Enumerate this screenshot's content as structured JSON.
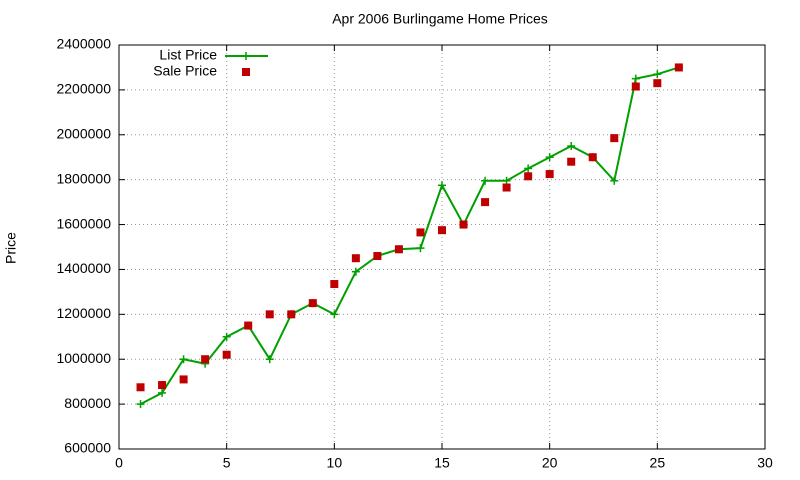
{
  "chart_data": {
    "type": "line",
    "title": "Apr 2006 Burlingame Home Prices",
    "y_label": "Price",
    "x": [
      1,
      2,
      3,
      4,
      5,
      6,
      7,
      8,
      9,
      10,
      11,
      12,
      13,
      14,
      15,
      16,
      17,
      18,
      19,
      20,
      21,
      22,
      23,
      24,
      25,
      26
    ],
    "series": [
      {
        "name": "List Price",
        "color": "#00a000",
        "style": "linespoints",
        "values": [
          800000,
          850000,
          1000000,
          980000,
          1100000,
          1150000,
          1000000,
          1200000,
          1250000,
          1200000,
          1390000,
          1460000,
          1490000,
          1495000,
          1775000,
          1600000,
          1795000,
          1795000,
          1850000,
          1900000,
          1950000,
          1900000,
          1795000,
          2250000,
          2270000,
          2300000
        ]
      },
      {
        "name": "Sale Price",
        "color": "#c00000",
        "style": "points",
        "values": [
          875000,
          885000,
          910000,
          1000000,
          1020000,
          1150000,
          1200000,
          1200000,
          1250000,
          1335000,
          1450000,
          1460000,
          1490000,
          1565000,
          1575000,
          1600000,
          1700000,
          1765000,
          1815000,
          1825000,
          1880000,
          1900000,
          1985000,
          2215000,
          2230000,
          2300000
        ]
      }
    ],
    "xlim": [
      0,
      30
    ],
    "xticks": [
      0,
      5,
      10,
      15,
      20,
      25,
      30
    ],
    "ylim": [
      600000,
      2400000
    ],
    "yticks": [
      600000,
      800000,
      1000000,
      1200000,
      1400000,
      1600000,
      1800000,
      2000000,
      2200000,
      2400000
    ],
    "grid": true,
    "legend": "top-left"
  }
}
